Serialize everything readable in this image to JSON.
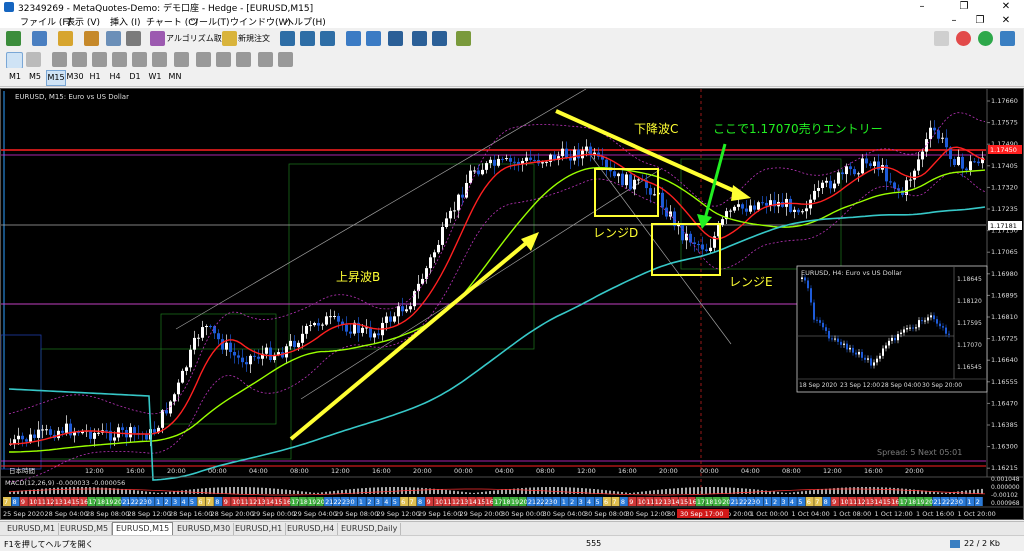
{
  "window": {
    "title": "32349269 - MetaQuotes-Demo: デモ口座 - Hedge - [EURUSD,M15]"
  },
  "menu": [
    "ファイル (F)",
    "表示 (V)",
    "挿入 (I)",
    "チャート (C)",
    "ツール(T)",
    "ウインドウ(W)",
    "ヘルプ(H)"
  ],
  "toolbar": {
    "algo_label": "アルゴリズム取引",
    "new_order_label": "新規注文"
  },
  "timeframes": [
    "M1",
    "M5",
    "M15",
    "M30",
    "H1",
    "H4",
    "D1",
    "W1",
    "MN"
  ],
  "active_timeframe": "M15",
  "chart": {
    "header": "EURUSD, M15:  Euro vs US Dollar",
    "price_ticks": [
      "1.17660",
      "1.17575",
      "1.17490",
      "1.17405",
      "1.17320",
      "1.17235",
      "1.17150",
      "1.17065",
      "1.16980",
      "1.16895",
      "1.16810",
      "1.16725",
      "1.16640",
      "1.16555",
      "1.16470",
      "1.16385",
      "1.16300",
      "1.16215"
    ],
    "price_tags": {
      "red": "1.17450",
      "white": "1.17181"
    },
    "annotations": {
      "wave_b": "上昇波B",
      "wave_c": "下降波C",
      "range_d": "レンジD",
      "range_e": "レンジE",
      "entry": "ここで1.17070売りエントリー"
    },
    "time_axis_label": "日本時間",
    "time_labels": [
      "12:00",
      "16:00",
      "20:00",
      "00:00",
      "04:00",
      "08:00",
      "12:00",
      "16:00",
      "20:00",
      "00:00",
      "04:00",
      "08:00",
      "12:00",
      "16:00",
      "20:00",
      "00:00",
      "04:00",
      "08:00",
      "12:00",
      "16:00",
      "20:00"
    ],
    "hour_numbers": [
      "7",
      "8",
      "9",
      "10",
      "11",
      "12",
      "13",
      "14",
      "15",
      "16",
      "17",
      "18",
      "19",
      "20",
      "21",
      "22",
      "23",
      "0",
      "1",
      "2",
      "3",
      "4",
      "5",
      "6",
      "7",
      "8",
      "9",
      "10",
      "11",
      "12",
      "13",
      "14",
      "15",
      "16",
      "17",
      "18",
      "19",
      "20",
      "21",
      "22",
      "23",
      "0",
      "1",
      "2",
      "3",
      "4",
      "5",
      "6",
      "7",
      "8",
      "9",
      "10",
      "11",
      "12",
      "13",
      "14",
      "15",
      "16",
      "17",
      "18",
      "19",
      "20",
      "21",
      "22",
      "23",
      "0",
      "1",
      "2",
      "3",
      "4",
      "5",
      "6",
      "7",
      "8",
      "9",
      "10",
      "11",
      "12",
      "13",
      "14",
      "15",
      "16",
      "17",
      "18",
      "19",
      "20",
      "21",
      "22",
      "23",
      "0",
      "1",
      "2",
      "3",
      "4",
      "5",
      "6",
      "7",
      "8",
      "9",
      "10",
      "11",
      "12",
      "13",
      "14",
      "15",
      "16",
      "17",
      "18",
      "19",
      "20",
      "21",
      "22",
      "23",
      "0",
      "1",
      "2",
      "3",
      "4",
      "5",
      "6"
    ],
    "spread": "Spread: 5    Next 05:01",
    "macd_label": "MACD(12,26,9) -0.000033 -0.000056",
    "macd_ticks": [
      "0.001048",
      "0.000000",
      "-0.00102",
      "0.000968"
    ],
    "date_labels": [
      "25 Sep 2020",
      "28 Sep 04:00",
      "28 Sep 08:00",
      "28 Sep 12:00",
      "28 Sep 16:00",
      "28 Sep 20:00",
      "29 Sep 00:00",
      "29 Sep 04:00",
      "29 Sep 08:00",
      "29 Sep 12:00",
      "29 Sep 16:00",
      "29 Sep 20:00",
      "30 Sep 00:00",
      "30 Sep 04:00",
      "30 Sep 08:00",
      "30 Sep 12:00",
      "30 Sep 16:00",
      "30 Sep 20:00",
      "1 Oct 00:00",
      "1 Oct 04:00",
      "1 Oct 08:00",
      "1 Oct 12:00",
      "1 Oct 16:00",
      "1 Oct 20:00"
    ],
    "date_cursor_label": "30 Sep 17:00",
    "inset": {
      "header": "EURUSD, H4:  Euro vs US Dollar",
      "ticks": [
        "1.18645",
        "1.18120",
        "1.17595",
        "1.17070",
        "1.16545"
      ],
      "date_labels": [
        "18 Sep 2020",
        "23 Sep 12:00",
        "28 Sep 04:00",
        "30 Sep 20:00"
      ]
    },
    "colors": {
      "bg": "#000000",
      "bull": "#ffffff",
      "bear": "#1e5bd8",
      "ma_red": "#ff2020",
      "ma_lime": "#9aff00",
      "ma_cyan": "#37c8c8",
      "annot": "#ffff33",
      "entry": "#22ee22"
    }
  },
  "tabs": [
    "EURUSD,M1",
    "EURUSD,M5",
    "EURUSD,M15",
    "EURUSD,M30",
    "EURUSD,H1",
    "EURUSD,H4",
    "EURUSD,Daily"
  ],
  "active_tab": "EURUSD,M15",
  "status": {
    "help": "F1を押してヘルプを開く",
    "center": "555",
    "traffic": "22 / 2 Kb"
  }
}
